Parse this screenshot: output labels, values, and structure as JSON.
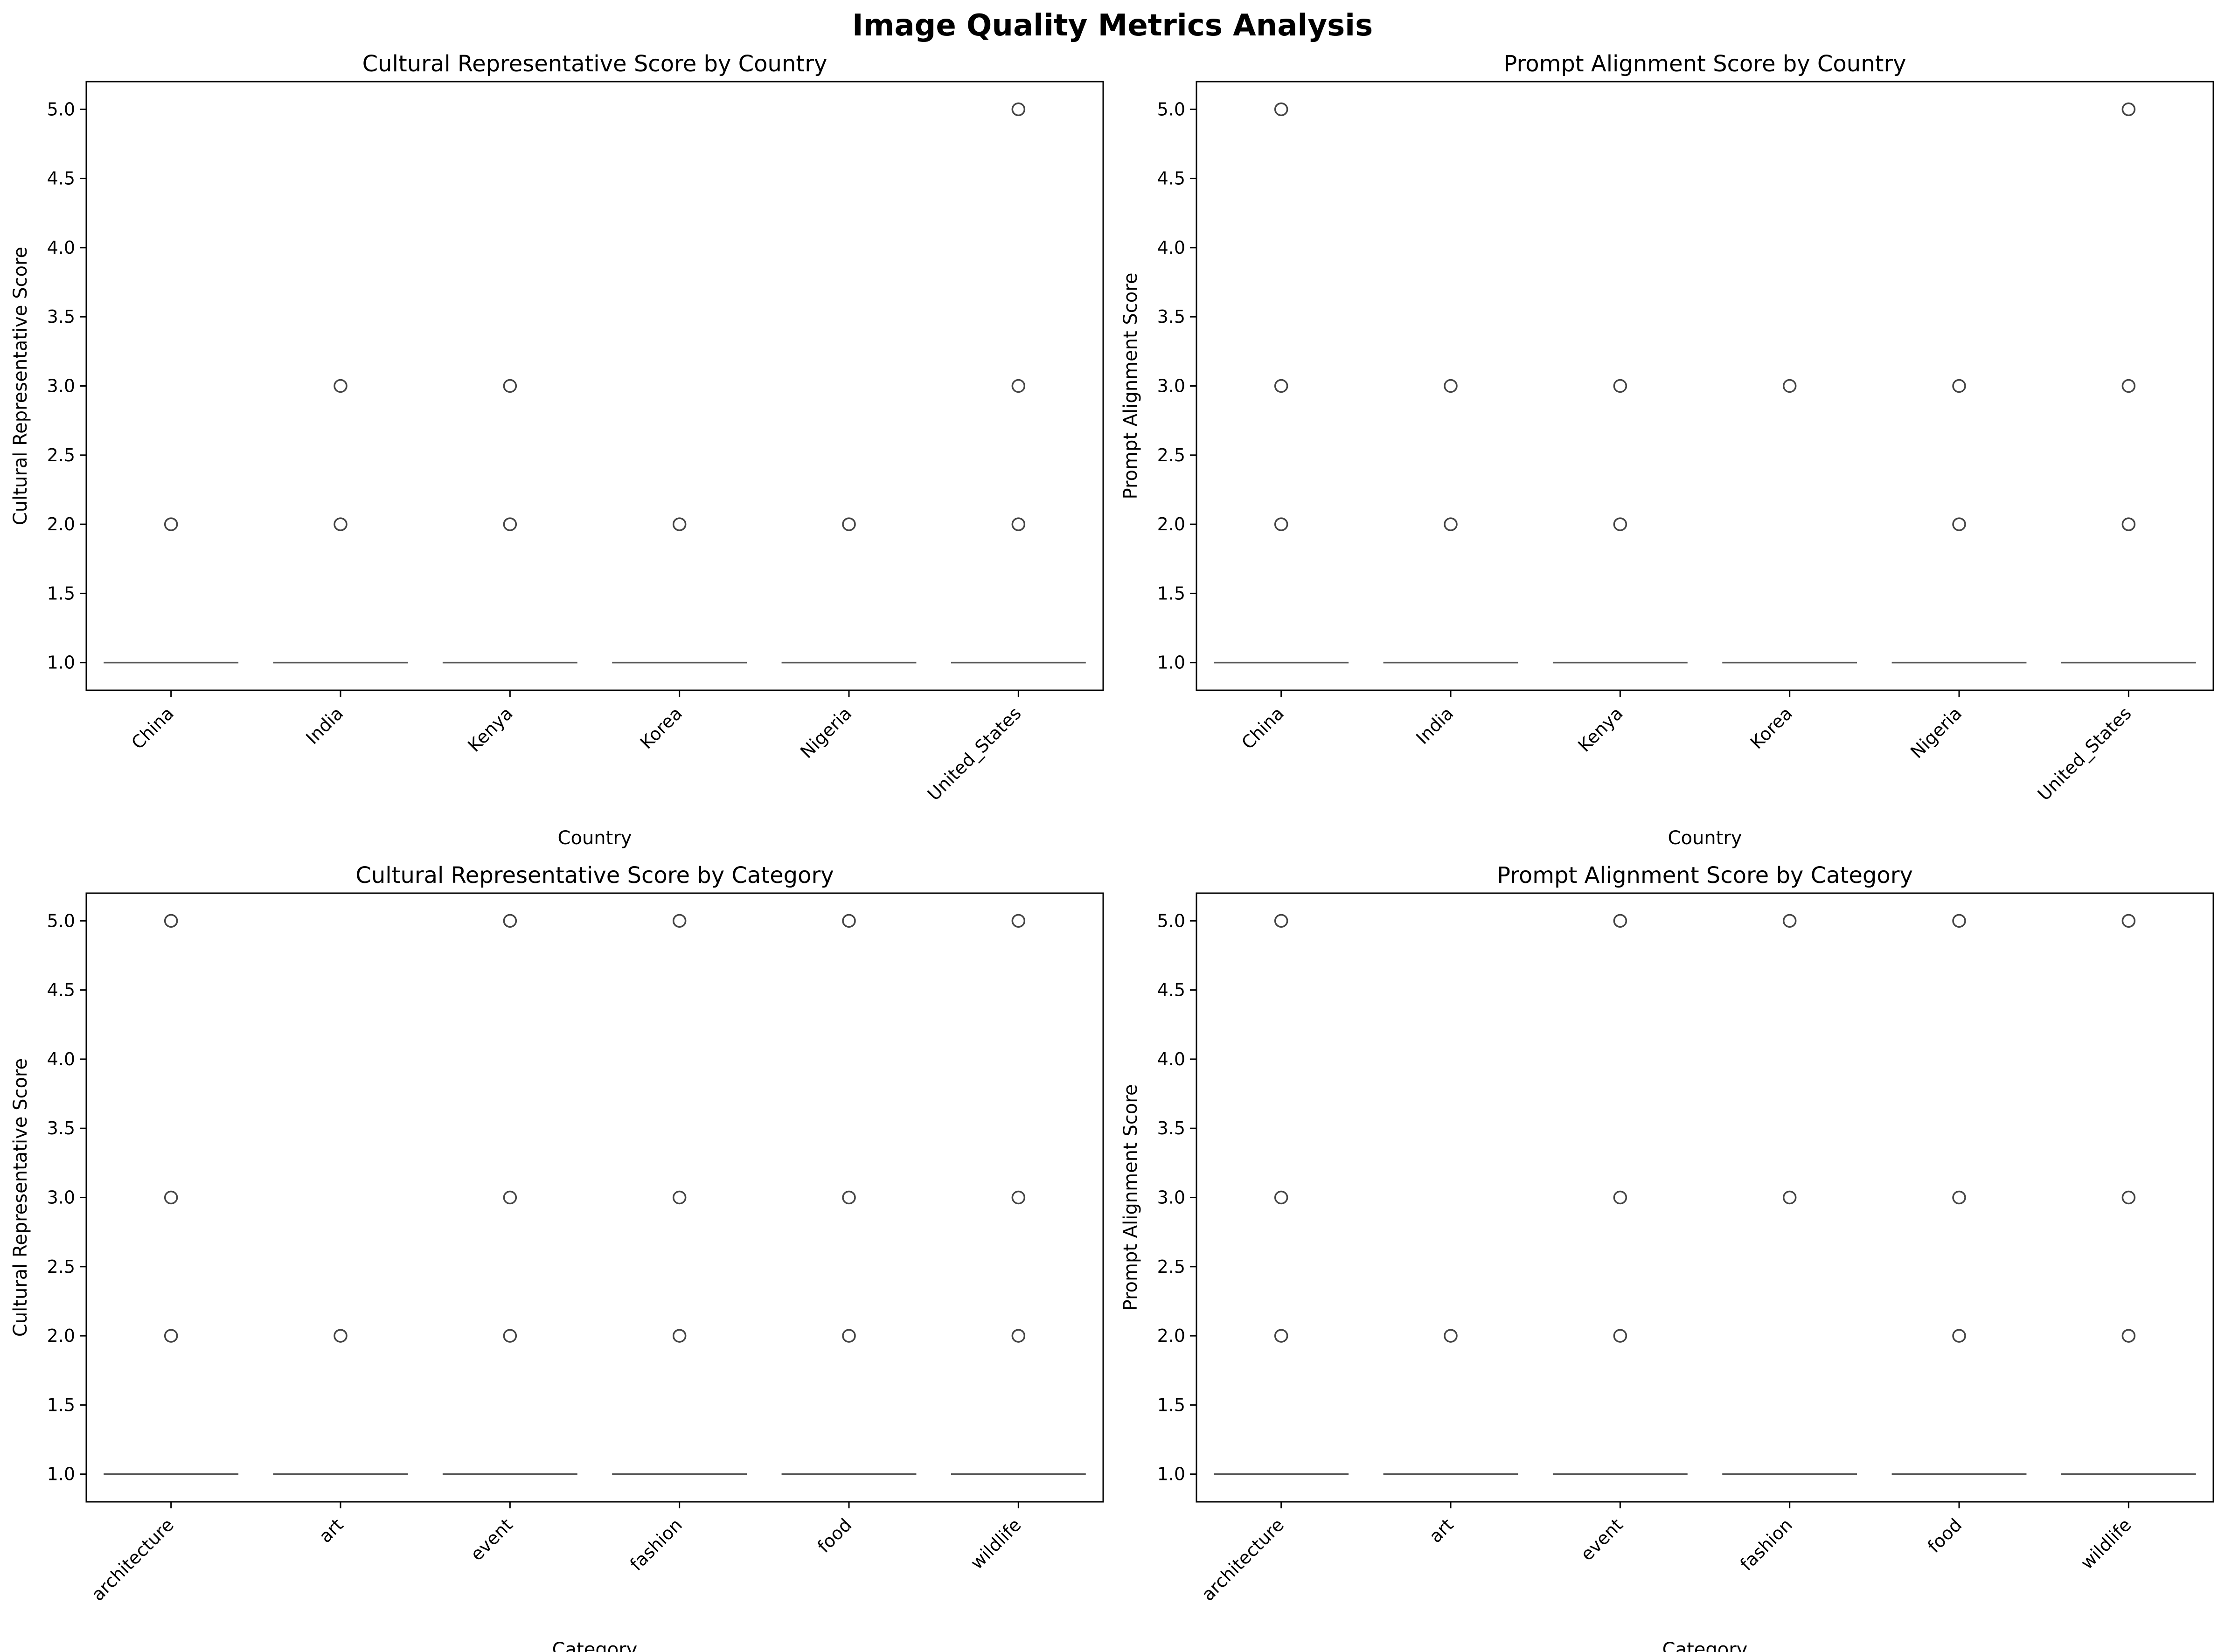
{
  "figure_title": "Image Quality Metrics Analysis",
  "chart_data": [
    {
      "type": "box",
      "title": "Cultural Representative Score by Country",
      "xlabel": "Country",
      "ylabel": "Cultural Representative Score",
      "categories": [
        "China",
        "India",
        "Kenya",
        "Korea",
        "Nigeria",
        "United_States"
      ],
      "ylim": [
        0.8,
        5.2
      ],
      "yticks": [
        "1.0",
        "1.5",
        "2.0",
        "2.5",
        "3.0",
        "3.5",
        "4.0",
        "4.5",
        "5.0"
      ],
      "median": [
        1,
        1,
        1,
        1,
        1,
        1
      ],
      "outliers": [
        [
          2
        ],
        [
          2,
          3
        ],
        [
          2,
          3
        ],
        [
          2
        ],
        [
          2
        ],
        [
          2,
          3,
          5
        ]
      ],
      "grid": false
    },
    {
      "type": "box",
      "title": "Prompt Alignment Score by Country",
      "xlabel": "Country",
      "ylabel": "Prompt Alignment Score",
      "categories": [
        "China",
        "India",
        "Kenya",
        "Korea",
        "Nigeria",
        "United_States"
      ],
      "ylim": [
        0.8,
        5.2
      ],
      "yticks": [
        "1.0",
        "1.5",
        "2.0",
        "2.5",
        "3.0",
        "3.5",
        "4.0",
        "4.5",
        "5.0"
      ],
      "median": [
        1,
        1,
        1,
        1,
        1,
        1
      ],
      "outliers": [
        [
          2,
          3,
          5
        ],
        [
          2,
          3
        ],
        [
          2,
          3
        ],
        [
          3
        ],
        [
          2,
          3
        ],
        [
          2,
          3,
          5
        ]
      ],
      "grid": false
    },
    {
      "type": "box",
      "title": "Cultural Representative Score by Category",
      "xlabel": "Category",
      "ylabel": "Cultural Representative Score",
      "categories": [
        "architecture",
        "art",
        "event",
        "fashion",
        "food",
        "wildlife"
      ],
      "ylim": [
        0.8,
        5.2
      ],
      "yticks": [
        "1.0",
        "1.5",
        "2.0",
        "2.5",
        "3.0",
        "3.5",
        "4.0",
        "4.5",
        "5.0"
      ],
      "median": [
        1,
        1,
        1,
        1,
        1,
        1
      ],
      "outliers": [
        [
          2,
          3,
          5
        ],
        [
          2
        ],
        [
          2,
          3,
          5
        ],
        [
          2,
          3,
          5
        ],
        [
          2,
          3,
          5
        ],
        [
          2,
          3,
          5
        ]
      ],
      "grid": false
    },
    {
      "type": "box",
      "title": "Prompt Alignment Score by Category",
      "xlabel": "Category",
      "ylabel": "Prompt Alignment Score",
      "categories": [
        "architecture",
        "art",
        "event",
        "fashion",
        "food",
        "wildlife"
      ],
      "ylim": [
        0.8,
        5.2
      ],
      "yticks": [
        "1.0",
        "1.5",
        "2.0",
        "2.5",
        "3.0",
        "3.5",
        "4.0",
        "4.5",
        "5.0"
      ],
      "median": [
        1,
        1,
        1,
        1,
        1,
        1
      ],
      "outliers": [
        [
          2,
          3,
          5
        ],
        [
          2
        ],
        [
          2,
          3,
          5
        ],
        [
          3,
          5
        ],
        [
          2,
          3,
          5
        ],
        [
          2,
          3,
          5
        ]
      ],
      "grid": false
    }
  ],
  "colors": {
    "axis": "#000000",
    "median": "#555555",
    "outlier_edge": "#444444"
  }
}
